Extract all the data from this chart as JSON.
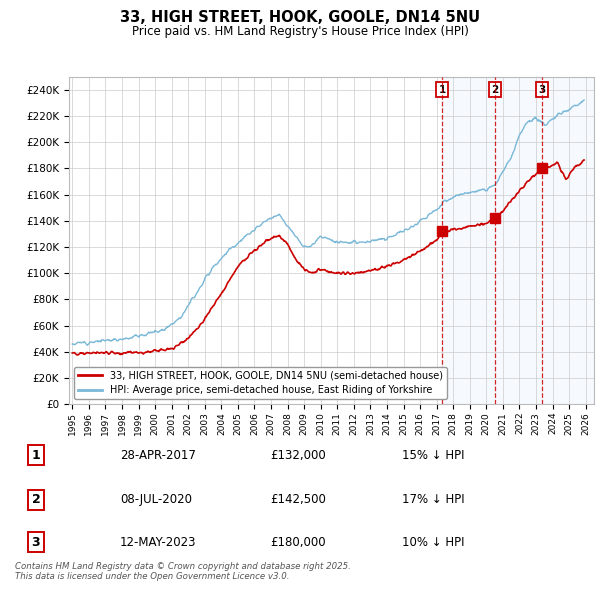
{
  "title1": "33, HIGH STREET, HOOK, GOOLE, DN14 5NU",
  "title2": "Price paid vs. HM Land Registry's House Price Index (HPI)",
  "ylim": [
    0,
    250000
  ],
  "yticks": [
    0,
    20000,
    40000,
    60000,
    80000,
    100000,
    120000,
    140000,
    160000,
    180000,
    200000,
    220000,
    240000
  ],
  "xlim_start": 1994.8,
  "xlim_end": 2026.5,
  "legend_line1": "33, HIGH STREET, HOOK, GOOLE, DN14 5NU (semi-detached house)",
  "legend_line2": "HPI: Average price, semi-detached house, East Riding of Yorkshire",
  "hpi_color": "#7ab8d8",
  "price_color": "#cc0000",
  "annotation_color": "#cc0000",
  "shade_color": "#ddeeff",
  "grid_color": "#cccccc",
  "bg_color": "#ffffff",
  "sale_dates": [
    2017.32,
    2020.52,
    2023.37
  ],
  "sale_prices": [
    132000,
    142500,
    180000
  ],
  "sale_labels": [
    "1",
    "2",
    "3"
  ],
  "sale_info": [
    {
      "num": "1",
      "date": "28-APR-2017",
      "price": "£132,000",
      "pct": "15% ↓ HPI"
    },
    {
      "num": "2",
      "date": "08-JUL-2020",
      "price": "£142,500",
      "pct": "17% ↓ HPI"
    },
    {
      "num": "3",
      "date": "12-MAY-2023",
      "price": "£180,000",
      "pct": "10% ↓ HPI"
    }
  ],
  "footer": "Contains HM Land Registry data © Crown copyright and database right 2025.\nThis data is licensed under the Open Government Licence v3.0."
}
